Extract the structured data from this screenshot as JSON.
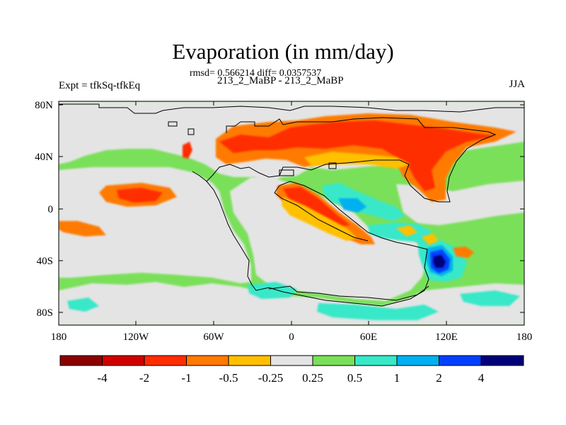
{
  "plot": {
    "title": "Evaporation (in mm/day)",
    "stats_line": "rmsd= 0.566214 diff= 0.0357537",
    "runs_line": "213_2_MaBP - 213_2_MaBP",
    "experiment_label": "Expt = tfkSq-tfkEq",
    "season": "JJA"
  },
  "axes": {
    "lat_ticks": [
      "80N",
      "40N",
      "0",
      "40S",
      "80S"
    ],
    "lon_ticks": [
      "180",
      "120W",
      "60W",
      "0",
      "60E",
      "120E",
      "180"
    ]
  },
  "colorbar": {
    "colors": [
      "#8c0000",
      "#d10000",
      "#ff2d00",
      "#ff7a00",
      "#ffc000",
      "#e4e4e4",
      "#7ae05a",
      "#38e8c8",
      "#00b0f0",
      "#0040ff",
      "#00007a"
    ],
    "labels": [
      "-4",
      "-2",
      "-1",
      "-0.5",
      "-0.25",
      "0.25",
      "0.5",
      "1",
      "2",
      "4"
    ]
  },
  "colors": {
    "land_gray": "#e4e4e4",
    "ocean_green": "#7ae05a",
    "coast_line": "#000000"
  }
}
